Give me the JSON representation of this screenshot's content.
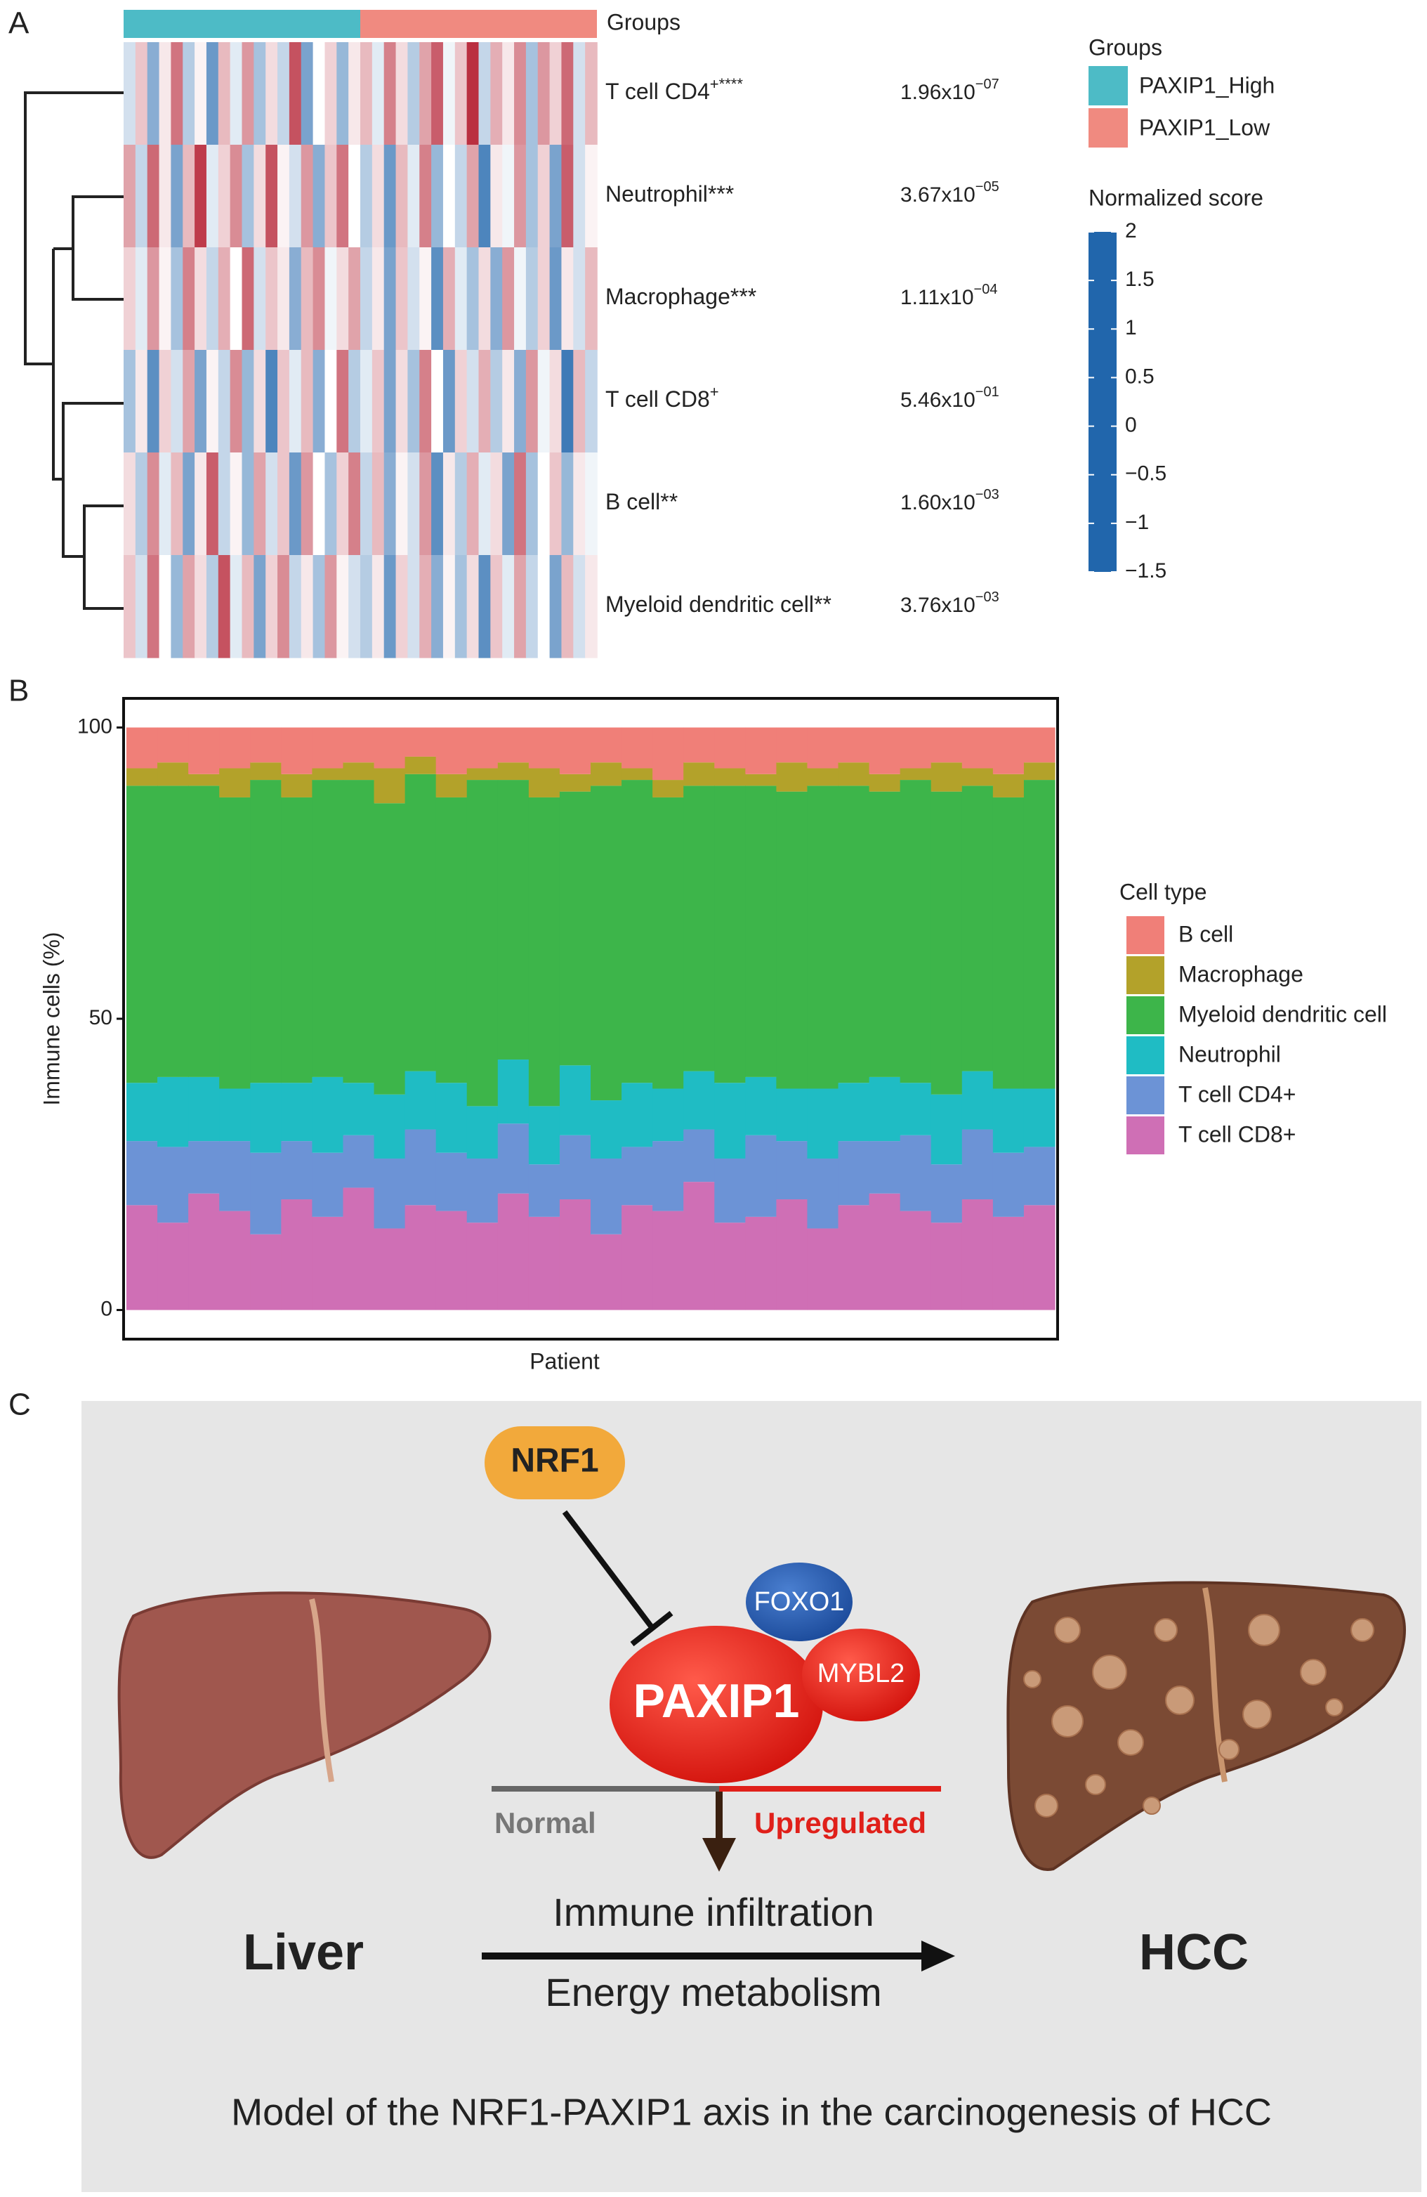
{
  "panel_labels": [
    "A",
    "B",
    "C"
  ],
  "heatmap": {
    "type": "heatmap",
    "groups_title": "Groups",
    "groups": [
      {
        "name": "PAXIP1_High",
        "color": "#4dbbc6"
      },
      {
        "name": "PAXIP1_Low",
        "color": "#f08a80"
      }
    ],
    "rows": [
      {
        "name": "T cell CD4",
        "sup": "+****",
        "p_mantissa": "1.96x10",
        "p_exponent": "−07",
        "values": [
          [
            -0.3,
            0.5,
            -0.8,
            0.2,
            1.2,
            -0.5,
            0.1,
            -1.0,
            0.6,
            -0.2,
            0.9,
            -0.6,
            0.3,
            -0.4,
            1.5,
            -0.9,
            0.0,
            0.4,
            -0.7,
            0.2
          ],
          [
            0.6,
            -0.2,
            1.1,
            0.3,
            -0.5,
            0.8,
            1.4,
            -0.1,
            0.5,
            1.8,
            -0.4,
            0.7,
            0.2,
            1.0,
            -0.6,
            0.9,
            0.4,
            1.3,
            -0.3,
            0.6
          ]
        ]
      },
      {
        "name": "Neutrophil***",
        "p_mantissa": "3.67x10",
        "p_exponent": "−05",
        "values": [
          [
            0.8,
            -0.4,
            1.3,
            0.2,
            -0.9,
            0.6,
            1.7,
            -0.2,
            0.4,
            1.0,
            -0.6,
            0.3,
            1.5,
            0.1,
            -0.3,
            0.9,
            -0.8,
            0.5,
            1.2,
            0.0
          ],
          [
            -0.5,
            0.3,
            -1.0,
            0.6,
            -0.2,
            1.1,
            -0.7,
            0.0,
            -0.4,
            0.8,
            -1.2,
            0.2,
            -0.1,
            0.9,
            -0.6,
            0.4,
            -0.9,
            1.4,
            -0.3,
            0.1
          ]
        ]
      },
      {
        "name": "Macrophage***",
        "p_mantissa": "1.11x10",
        "p_exponent": "−04",
        "values": [
          [
            0.4,
            -0.2,
            0.9,
            0.1,
            -0.6,
            1.1,
            0.3,
            -0.4,
            0.7,
            0.0,
            1.3,
            -0.3,
            0.5,
            0.2,
            -0.8,
            0.6,
            1.0,
            -0.1,
            0.3,
            0.8
          ],
          [
            -0.4,
            0.2,
            -0.9,
            0.5,
            -0.3,
            0.1,
            -1.1,
            0.7,
            -0.2,
            -0.6,
            0.3,
            -0.8,
            0.9,
            -0.1,
            -0.5,
            0.4,
            -1.0,
            0.2,
            -0.3,
            0.6
          ]
        ]
      },
      {
        "name": "T cell CD8",
        "sup": "+",
        "p_mantissa": "5.46x10",
        "p_exponent": "−01",
        "values": [
          [
            -0.6,
            0.2,
            -1.1,
            0.4,
            -0.3,
            0.8,
            -0.9,
            0.1,
            -0.4,
            1.0,
            -0.7,
            0.3,
            -1.2,
            0.5,
            -0.2,
            0.6,
            -0.8,
            0.0,
            1.2,
            -0.5
          ],
          [
            -0.2,
            0.5,
            -0.9,
            0.3,
            -0.6,
            1.1,
            0.0,
            -1.0,
            0.4,
            -0.3,
            0.7,
            -0.5,
            0.2,
            -0.8,
            0.9,
            -0.1,
            0.3,
            -1.3,
            0.6,
            -0.4
          ]
        ]
      },
      {
        "name": "B cell**",
        "p_mantissa": "1.60x10",
        "p_exponent": "−03",
        "values": [
          [
            0.3,
            -0.5,
            1.0,
            -0.2,
            0.6,
            -0.9,
            0.2,
            1.4,
            -0.4,
            0.1,
            -0.7,
            0.8,
            -0.3,
            0.5,
            -1.0,
            0.9,
            0.0,
            -0.6,
            0.4,
            1.1
          ],
          [
            -0.4,
            0.6,
            -0.8,
            0.1,
            -0.3,
            0.9,
            -1.1,
            0.2,
            -0.5,
            0.7,
            -0.2,
            0.3,
            -0.9,
            1.2,
            -0.6,
            0.0,
            0.5,
            -0.7,
            0.2,
            -0.1
          ]
        ]
      },
      {
        "name": "Myeloid dendritic cell**",
        "p_mantissa": "3.76x10",
        "p_exponent": "−03",
        "values": [
          [
            0.5,
            -0.3,
            1.2,
            0.0,
            -0.7,
            0.8,
            0.3,
            -0.5,
            1.5,
            -0.2,
            0.6,
            -0.9,
            0.4,
            1.0,
            -0.4,
            0.2,
            -0.6,
            0.9,
            0.1,
            -0.3
          ],
          [
            -0.5,
            0.2,
            -1.0,
            0.4,
            -0.3,
            0.7,
            -0.8,
            0.1,
            -0.6,
            0.3,
            -1.1,
            0.5,
            -0.2,
            0.8,
            -0.4,
            0.0,
            -0.9,
            0.6,
            -0.3,
            0.2
          ]
        ]
      }
    ],
    "colorbar": {
      "title": "Normalized score",
      "lim": [
        -1.5,
        2
      ],
      "ticks": [
        2,
        1.5,
        1,
        0.5,
        0,
        {
          "value": -0.5,
          "label": "−0.5"
        },
        {
          "value": -1,
          "label": "−1"
        },
        {
          "value": -1.5,
          "label": "−1.5"
        }
      ],
      "color_stops": [
        {
          "value": -1.5,
          "color": "#2166ac"
        },
        {
          "value": 0,
          "color": "#ffffff"
        },
        {
          "value": 2,
          "color": "#b2182b"
        }
      ]
    }
  },
  "bar": {
    "type": "stacked_bar",
    "ylabel": "Immune cells (%)",
    "xlabel": "Patient",
    "ylim": [
      -5,
      105
    ],
    "yticks": [
      0,
      50,
      100
    ],
    "legend_title": "Cell type",
    "series": [
      {
        "name": "B cell",
        "color": "#f07f78",
        "values": [
          7,
          6,
          8,
          7,
          6,
          8,
          7,
          6,
          7,
          5,
          8,
          7,
          6,
          7,
          8,
          6,
          7,
          9,
          6,
          7,
          8,
          6,
          7,
          6,
          8,
          7,
          6,
          7,
          8,
          6
        ]
      },
      {
        "name": "Macrophage",
        "color": "#b3a22a",
        "values": [
          3,
          4,
          2,
          5,
          3,
          4,
          2,
          3,
          6,
          3,
          4,
          2,
          3,
          5,
          3,
          4,
          2,
          3,
          4,
          3,
          2,
          5,
          3,
          4,
          3,
          2,
          5,
          3,
          4,
          3
        ]
      },
      {
        "name": "Myeloid dendritic cell",
        "color": "#3db54a",
        "values": [
          51,
          50,
          50,
          50,
          52,
          49,
          51,
          52,
          50,
          51,
          49,
          56,
          48,
          53,
          47,
          54,
          52,
          50,
          49,
          51,
          50,
          51,
          52,
          51,
          49,
          52,
          52,
          49,
          50,
          53
        ]
      },
      {
        "name": "Neutrophil",
        "color": "#1fbcc4",
        "values": [
          10,
          12,
          11,
          9,
          12,
          10,
          13,
          9,
          11,
          10,
          12,
          9,
          11,
          10,
          12,
          10,
          11,
          9,
          10,
          13,
          10,
          9,
          12,
          10,
          11,
          9,
          12,
          10,
          11,
          10
        ]
      },
      {
        "name": "T cell CD4+",
        "color": "#6c93d6",
        "values": [
          11,
          13,
          9,
          12,
          14,
          10,
          11,
          9,
          12,
          13,
          10,
          11,
          12,
          9,
          11,
          13,
          10,
          12,
          9,
          11,
          14,
          10,
          12,
          11,
          9,
          13,
          10,
          12,
          11,
          10
        ]
      },
      {
        "name": "T cell CD8+",
        "color": "#cf6fb5",
        "values": [
          18,
          15,
          20,
          17,
          13,
          19,
          16,
          21,
          14,
          18,
          17,
          15,
          20,
          16,
          19,
          13,
          18,
          17,
          22,
          15,
          16,
          19,
          14,
          18,
          20,
          17,
          15,
          19,
          16,
          18
        ]
      }
    ]
  },
  "diagram": {
    "regulator": "NRF1",
    "partners": [
      "FOXO1",
      "MYBL2"
    ],
    "target": "PAXIP1",
    "states": [
      "Normal",
      "Upregulated"
    ],
    "processes": [
      "Immune infiltration",
      "Energy metabolism"
    ],
    "from": "Liver",
    "to": "HCC",
    "caption": "Model of the NRF1-PAXIP1 axis in the carcinogenesis of HCC"
  }
}
